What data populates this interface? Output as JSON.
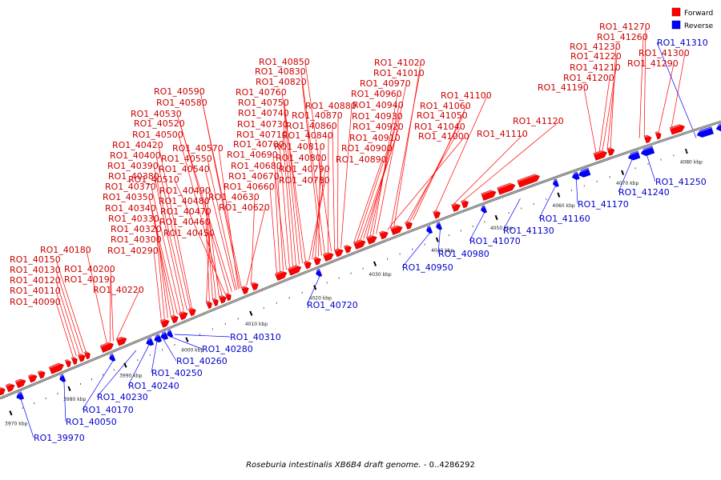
{
  "legend": {
    "forward_label": "Forward",
    "reverse_label": "Reverse",
    "forward_color": "#ff0000",
    "reverse_color": "#0000ff"
  },
  "caption": {
    "organism": "Roseburia intestinalis XB6B4 draft genome.",
    "range": " - 0..4286292"
  },
  "ticks": [
    "3970 kbp",
    "3980 kbp",
    "3990 kbp",
    "4000 kbp",
    "4010 kbp",
    "4020 kbp",
    "4030 kbp",
    "4040 kbp",
    "4050 kbp",
    "4060 kbp",
    "4070 kbp",
    "4080 kbp"
  ],
  "forward_labels": [
    "RO1_40090",
    "RO1_40110",
    "RO1_40120",
    "RO1_40130",
    "RO1_40150",
    "RO1_40180",
    "RO1_40190",
    "RO1_40200",
    "RO1_40220",
    "RO1_40290",
    "RO1_40300",
    "RO1_40320",
    "RO1_40330",
    "RO1_40340",
    "RO1_40350",
    "RO1_40370",
    "RO1_40380",
    "RO1_40390",
    "RO1_40400",
    "RO1_40420",
    "RO1_40450",
    "RO1_40460",
    "RO1_40470",
    "RO1_40480",
    "RO1_40490",
    "RO1_40500",
    "RO1_40510",
    "RO1_40520",
    "RO1_40530",
    "RO1_40540",
    "RO1_40550",
    "RO1_40570",
    "RO1_40580",
    "RO1_40590",
    "RO1_40620",
    "RO1_40630",
    "RO1_40660",
    "RO1_40670",
    "RO1_40680",
    "RO1_40690",
    "RO1_40700",
    "RO1_40710",
    "RO1_40730",
    "RO1_40740",
    "RO1_40750",
    "RO1_40760",
    "RO1_40780",
    "RO1_40790",
    "RO1_40800",
    "RO1_40810",
    "RO1_40820",
    "RO1_40830",
    "RO1_40840",
    "RO1_40850",
    "RO1_40860",
    "RO1_40870",
    "RO1_40880",
    "RO1_40890",
    "RO1_40900",
    "RO1_40910",
    "RO1_40920",
    "RO1_40930",
    "RO1_40940",
    "RO1_40960",
    "RO1_40970",
    "RO1_41000",
    "RO1_41010",
    "RO1_41020",
    "RO1_41040",
    "RO1_41050",
    "RO1_41060",
    "RO1_41100",
    "RO1_41110",
    "RO1_41120",
    "RO1_41190",
    "RO1_41200",
    "RO1_41210",
    "RO1_41220",
    "RO1_41230",
    "RO1_41260",
    "RO1_41270",
    "RO1_41290",
    "RO1_41300"
  ],
  "reverse_labels": [
    "RO1_39970",
    "RO1_40050",
    "RO1_40170",
    "RO1_40230",
    "RO1_40240",
    "RO1_40250",
    "RO1_40260",
    "RO1_40280",
    "RO1_40310",
    "RO1_40720",
    "RO1_40950",
    "RO1_40980",
    "RO1_41070",
    "RO1_41130",
    "RO1_41160",
    "RO1_41170",
    "RO1_41240",
    "RO1_41250",
    "RO1_41310"
  ]
}
